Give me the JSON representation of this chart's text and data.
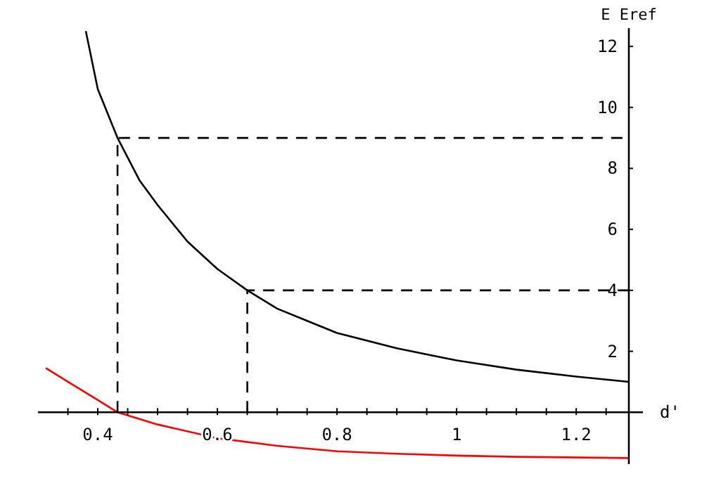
{
  "chart_data": {
    "type": "line",
    "xlabel": "d'",
    "ylabel": "E Eref",
    "xlim": [
      0.3,
      1.288
    ],
    "ylim": [
      -1.7,
      12.6
    ],
    "xticks": [
      {
        "value": 0.35,
        "label": null
      },
      0.4,
      {
        "value": 0.45,
        "label": null
      },
      {
        "value": 0.5,
        "label": null
      },
      {
        "value": 0.55,
        "label": null
      },
      0.6,
      {
        "value": 0.65,
        "label": null
      },
      {
        "value": 0.7,
        "label": null
      },
      {
        "value": 0.75,
        "label": null
      },
      0.8,
      {
        "value": 0.85,
        "label": null
      },
      {
        "value": 0.9,
        "label": null
      },
      {
        "value": 0.95,
        "label": null
      },
      1,
      {
        "value": 1.05,
        "label": null
      },
      {
        "value": 1.1,
        "label": null
      },
      {
        "value": 1.15,
        "label": null
      },
      1.2,
      {
        "value": 1.25,
        "label": null
      }
    ],
    "yticks": [
      2,
      4,
      6,
      8,
      10,
      12
    ],
    "marker": "none",
    "series": [
      {
        "color": "#000000",
        "line_style": "solid",
        "x": [
          0.38,
          0.4,
          0.433,
          0.47,
          0.5,
          0.55,
          0.6,
          0.65,
          0.7,
          0.75,
          0.8,
          0.9,
          1.0,
          1.1,
          1.2,
          1.288
        ],
        "values": [
          12.5,
          10.6,
          9,
          7.6,
          6.8,
          5.6,
          4.7,
          4,
          3.4,
          3.0,
          2.6,
          2.1,
          1.7,
          1.4,
          1.17,
          1.0
        ]
      },
      {
        "color": "#ff0000",
        "line_style": "solid",
        "x": [
          0.313,
          0.35,
          0.4,
          0.433,
          0.5,
          0.6,
          0.7,
          0.8,
          0.9,
          1.0,
          1.1,
          1.288
        ],
        "values": [
          1.45,
          1.0,
          0.4,
          0,
          -0.4,
          -0.85,
          -1.1,
          -1.28,
          -1.36,
          -1.42,
          -1.46,
          -1.5
        ]
      },
      {
        "color": "#000000",
        "line_style": "dashed",
        "x": [
          0.433,
          0.433,
          1.288
        ],
        "values": [
          0,
          9,
          9
        ]
      },
      {
        "color": "#000000",
        "line_style": "dashed",
        "x": [
          0.65,
          0.65,
          1.288
        ],
        "values": [
          0,
          4,
          4
        ]
      }
    ]
  }
}
